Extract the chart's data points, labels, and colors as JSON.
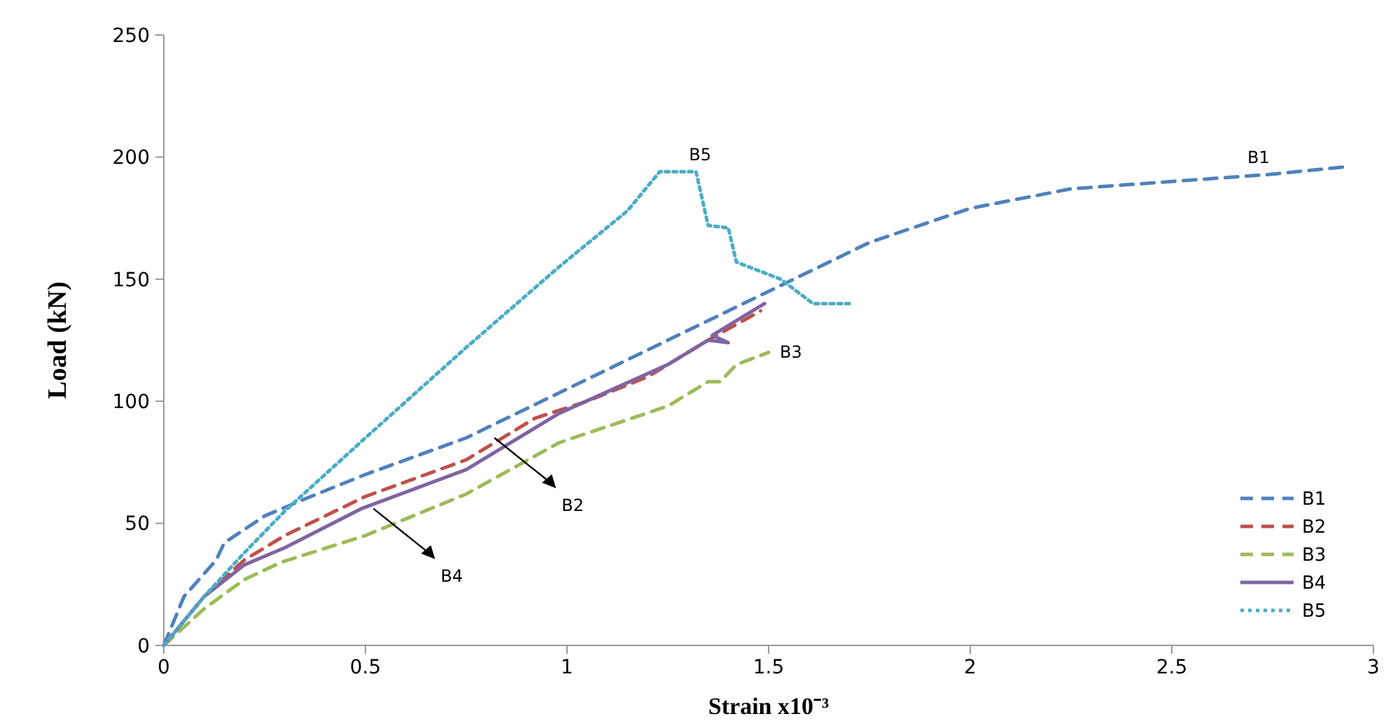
{
  "chart_data": {
    "type": "line",
    "xlabel": "Strain x10⁻³",
    "ylabel": "Load (kN)",
    "xlim": [
      0,
      3
    ],
    "ylim": [
      0,
      250
    ],
    "xticks": [
      0,
      {
        "value": 0.5,
        "label": "0.5"
      },
      1,
      {
        "value": 1.5,
        "label": "1.5"
      },
      2,
      {
        "value": 2.5,
        "label": "2.5"
      },
      3
    ],
    "yticks": [
      0,
      50,
      100,
      150,
      200,
      250
    ],
    "grid": false,
    "legend": "bottom right",
    "marker": "none",
    "series": [
      {
        "name": "B1",
        "color": "#4f81bd",
        "line_style": "dashed",
        "x": [
          0,
          0.02,
          0.05,
          0.13,
          0.15,
          0.25,
          0.35,
          0.5,
          0.75,
          1,
          1.25,
          1.5,
          1.75,
          2,
          2.25,
          2.5,
          2.75,
          2.93
        ],
        "values": [
          0,
          8,
          20,
          35,
          42,
          53,
          60,
          70,
          85,
          105,
          125,
          145,
          165,
          179,
          187,
          190,
          193,
          196
        ]
      },
      {
        "name": "B2",
        "color": "#c0504d",
        "line_style": "dashed",
        "x": [
          0,
          0.1,
          0.2,
          0.3,
          0.5,
          0.75,
          0.92,
          1.05,
          1.2,
          1.35,
          1.48
        ],
        "values": [
          0,
          20,
          35,
          45,
          61,
          76,
          93,
          100,
          110,
          125,
          137
        ]
      },
      {
        "name": "B3",
        "color": "#9bbb59",
        "line_style": "dashed",
        "x": [
          0,
          0.1,
          0.2,
          0.29,
          0.5,
          0.75,
          0.98,
          1.25,
          1.35,
          1.38,
          1.42,
          1.5
        ],
        "values": [
          0,
          15,
          27,
          34,
          45,
          62,
          83,
          98,
          108,
          108,
          115,
          120
        ]
      },
      {
        "name": "B4",
        "color": "#8064a2",
        "line_style": "solid",
        "x": [
          0,
          0.1,
          0.2,
          0.3,
          0.49,
          0.75,
          0.98,
          1.25,
          1.35,
          1.4,
          1.36,
          1.49
        ],
        "values": [
          0,
          20,
          33,
          40,
          56,
          72,
          95,
          115,
          125,
          124,
          127,
          140
        ]
      },
      {
        "name": "B5",
        "color": "#4bacc6",
        "line_style": "dotted",
        "x": [
          0,
          0.1,
          0.2,
          0.3,
          0.5,
          0.75,
          0.98,
          1.15,
          1.23,
          1.32,
          1.35,
          1.4,
          1.42,
          1.53,
          1.61,
          1.7
        ],
        "values": [
          0,
          20,
          38,
          55,
          85,
          122,
          155,
          178,
          194,
          194,
          172,
          171,
          157,
          150,
          140,
          140
        ]
      }
    ],
    "annotations": [
      {
        "text": "B1",
        "x": 2.75,
        "y": 193
      },
      {
        "text": "B5",
        "x": 1.32,
        "y": 194
      },
      {
        "text": "B3",
        "x": 1.5,
        "y": 120
      },
      {
        "text": "B2",
        "x": 0.82,
        "y": 85
      },
      {
        "text": "B4",
        "x": 0.52,
        "y": 56
      }
    ]
  }
}
